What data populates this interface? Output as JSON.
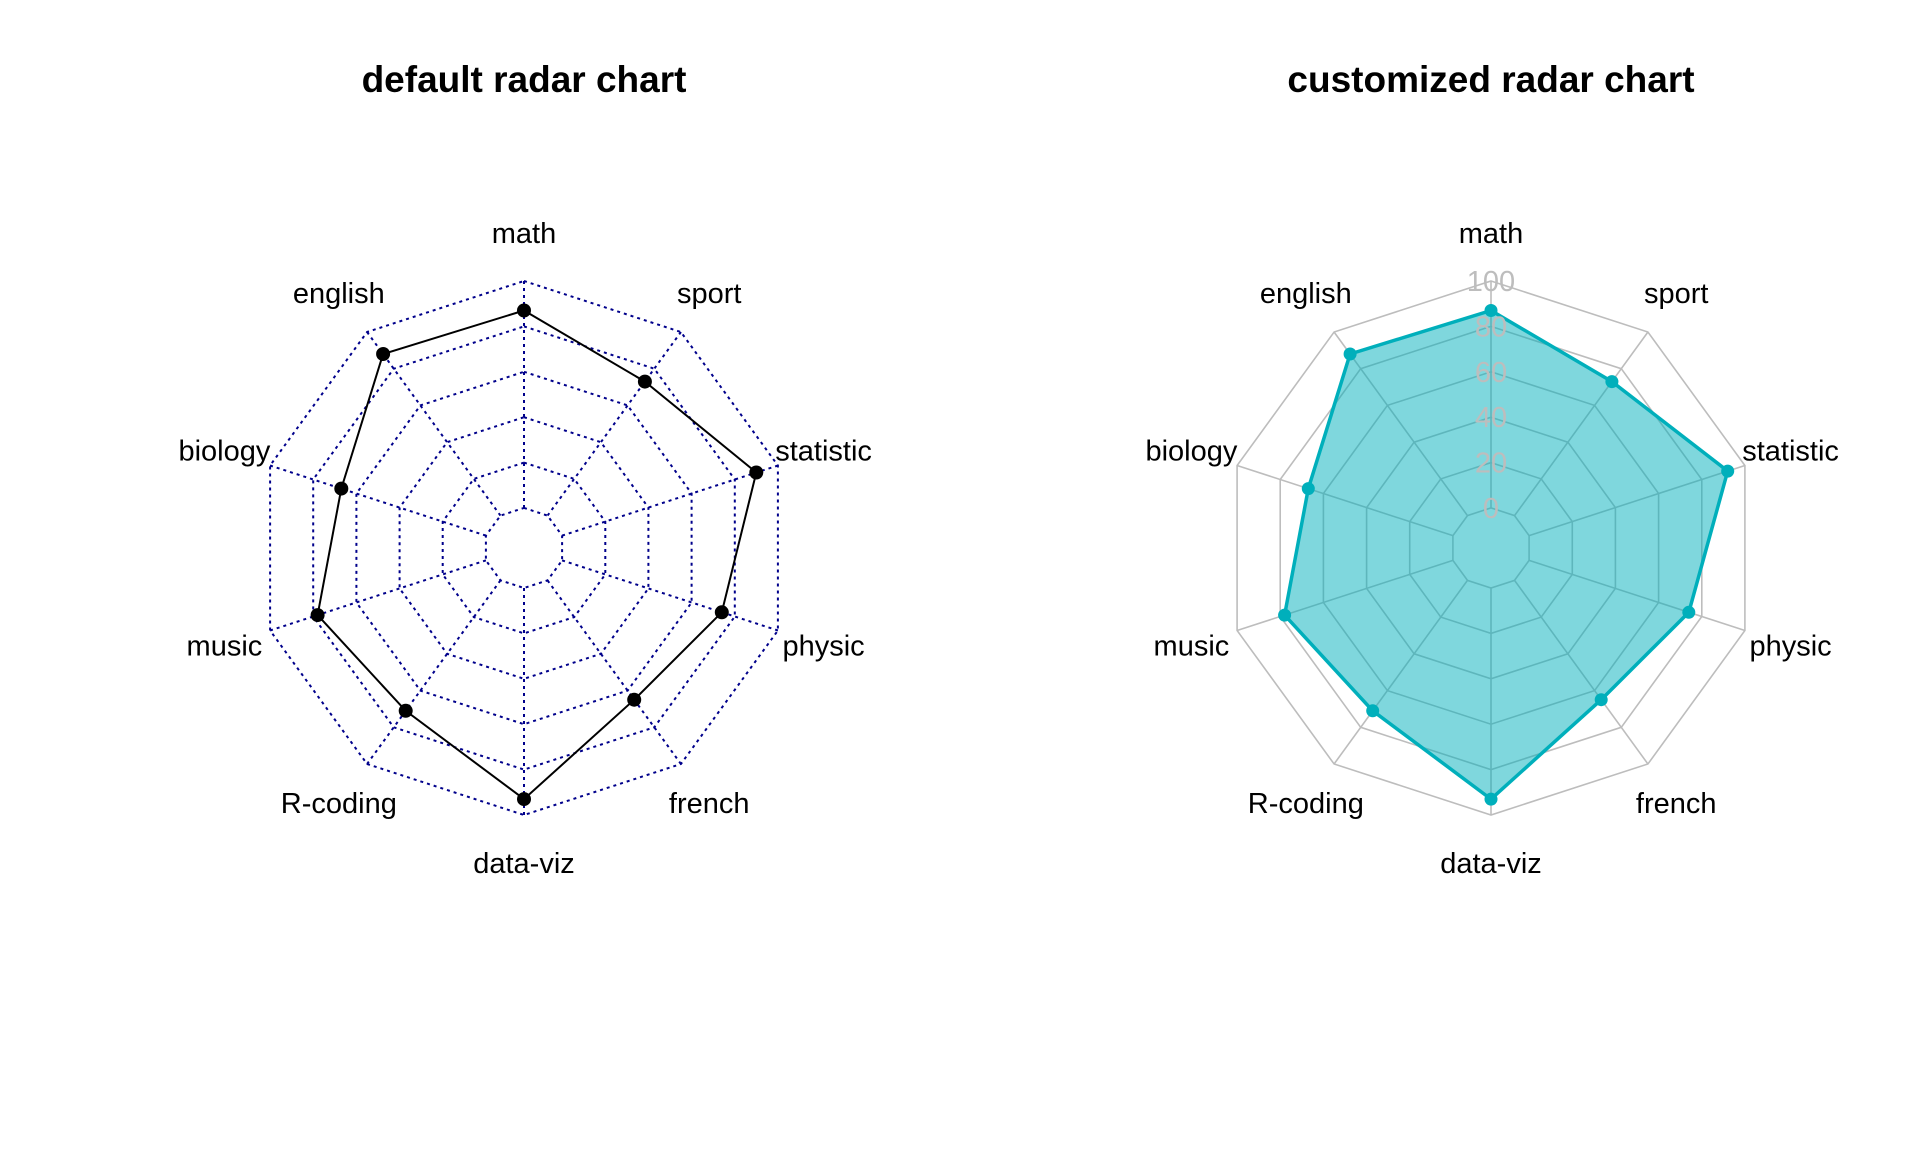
{
  "chart_data": [
    {
      "type": "radar",
      "title": "default radar chart",
      "axes": [
        "math",
        "sport",
        "statistic",
        "physic",
        "french",
        "data-viz",
        "R-coding",
        "music",
        "biology",
        "english"
      ],
      "range": [
        0,
        20
      ],
      "rings": 5,
      "values": [
        17.4,
        14.6,
        18.0,
        14.8,
        13.0,
        18.6,
        14.2,
        15.6,
        13.4,
        17.6
      ],
      "grid_style": "dotted",
      "show_ring_labels": false,
      "colors": {
        "grid": "#00008b",
        "line": "#000000",
        "point": "#000000"
      }
    },
    {
      "type": "radar",
      "title": "customized radar chart",
      "axes": [
        "math",
        "sport",
        "statistic",
        "physic",
        "french",
        "data-viz",
        "R-coding",
        "music",
        "biology",
        "english"
      ],
      "range": [
        0,
        100
      ],
      "rings": 5,
      "ring_labels": [
        "0",
        "20",
        "40",
        "60",
        "80",
        "100"
      ],
      "values": [
        87,
        73,
        92,
        74,
        65,
        93,
        71,
        78,
        67,
        88
      ],
      "grid_style": "solid",
      "show_ring_labels": true,
      "colors": {
        "grid": "#bdbdbd",
        "line": "#00afbb",
        "point": "#00afbb",
        "fill": "#00afbb"
      }
    }
  ]
}
